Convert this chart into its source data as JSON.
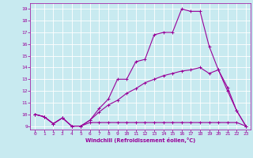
{
  "xlabel": "Windchill (Refroidissement éolien,°C)",
  "bg_color": "#c8eaf0",
  "line_color": "#990099",
  "grid_color": "#ffffff",
  "xlim": [
    -0.5,
    23.5
  ],
  "ylim": [
    8.7,
    19.5
  ],
  "yticks": [
    9,
    10,
    11,
    12,
    13,
    14,
    15,
    16,
    17,
    18,
    19
  ],
  "xticks": [
    0,
    1,
    2,
    3,
    4,
    5,
    6,
    7,
    8,
    9,
    10,
    11,
    12,
    13,
    14,
    15,
    16,
    17,
    18,
    19,
    20,
    21,
    22,
    23
  ],
  "line1_x": [
    0,
    1,
    2,
    3,
    4,
    5,
    6,
    7,
    8,
    9,
    10,
    11,
    12,
    13,
    14,
    15,
    16,
    17,
    18,
    19,
    20,
    21,
    22,
    23
  ],
  "line1_y": [
    10.0,
    9.8,
    9.2,
    9.7,
    9.0,
    9.0,
    9.3,
    9.3,
    9.3,
    9.3,
    9.3,
    9.3,
    9.3,
    9.3,
    9.3,
    9.3,
    9.3,
    9.3,
    9.3,
    9.3,
    9.3,
    9.3,
    9.3,
    9.0
  ],
  "line2_x": [
    0,
    1,
    2,
    3,
    4,
    5,
    6,
    7,
    8,
    9,
    10,
    11,
    12,
    13,
    14,
    15,
    16,
    17,
    18,
    19,
    20,
    21,
    22,
    23
  ],
  "line2_y": [
    10.0,
    9.8,
    9.2,
    9.7,
    9.0,
    9.0,
    9.5,
    10.2,
    10.8,
    11.2,
    11.8,
    12.2,
    12.7,
    13.0,
    13.3,
    13.5,
    13.7,
    13.8,
    14.0,
    13.5,
    13.8,
    12.0,
    10.3,
    9.0
  ],
  "line3_x": [
    0,
    1,
    2,
    3,
    4,
    5,
    6,
    7,
    8,
    9,
    10,
    11,
    12,
    13,
    14,
    15,
    16,
    17,
    18,
    19,
    20,
    21,
    22,
    23
  ],
  "line3_y": [
    10.0,
    9.8,
    9.2,
    9.7,
    9.0,
    9.0,
    9.5,
    10.5,
    11.3,
    13.0,
    13.0,
    14.5,
    14.7,
    16.8,
    17.0,
    17.0,
    19.0,
    18.8,
    18.8,
    15.8,
    13.8,
    12.3,
    10.3,
    9.0
  ]
}
